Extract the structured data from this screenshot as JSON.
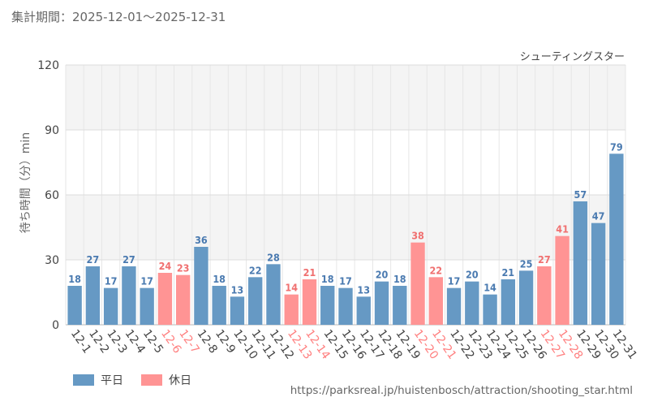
{
  "header": {
    "period": "集計期間：2025-12-01～2025-12-31"
  },
  "chart_data": {
    "type": "bar",
    "title": "シューティングスター",
    "ylabel": "待ち時間（分）min",
    "xlabel": "",
    "ylim": [
      0,
      120
    ],
    "yticks": [
      0,
      30,
      60,
      90,
      120
    ],
    "categories": [
      "12-1",
      "12-2",
      "12-3",
      "12-4",
      "12-5",
      "12-6",
      "12-7",
      "12-8",
      "12-9",
      "12-10",
      "12-11",
      "12-12",
      "12-13",
      "12-14",
      "12-15",
      "12-16",
      "12-17",
      "12-18",
      "12-19",
      "12-20",
      "12-21",
      "12-22",
      "12-23",
      "12-24",
      "12-25",
      "12-26",
      "12-27",
      "12-28",
      "12-29",
      "12-30",
      "12-31"
    ],
    "values": [
      18,
      27,
      17,
      27,
      17,
      24,
      23,
      36,
      18,
      13,
      22,
      28,
      14,
      21,
      18,
      17,
      13,
      20,
      18,
      38,
      22,
      17,
      20,
      14,
      21,
      25,
      27,
      41,
      57,
      47,
      79
    ],
    "day_type": [
      "weekday",
      "weekday",
      "weekday",
      "weekday",
      "weekday",
      "holiday",
      "holiday",
      "weekday",
      "weekday",
      "weekday",
      "weekday",
      "weekday",
      "holiday",
      "holiday",
      "weekday",
      "weekday",
      "weekday",
      "weekday",
      "weekday",
      "holiday",
      "holiday",
      "weekday",
      "weekday",
      "weekday",
      "weekday",
      "weekday",
      "holiday",
      "holiday",
      "weekday",
      "weekday",
      "weekday"
    ],
    "legend": [
      {
        "key": "weekday",
        "label": "平日",
        "color": "#6699c4"
      },
      {
        "key": "holiday",
        "label": "休日",
        "color": "#ff9494"
      }
    ],
    "label_colors": {
      "weekday": "#4a7ab0",
      "holiday": "#f07070"
    },
    "grid": true
  },
  "footer": {
    "source": "https://parksreal.jp/huistenbosch/attraction/shooting_star.html"
  }
}
